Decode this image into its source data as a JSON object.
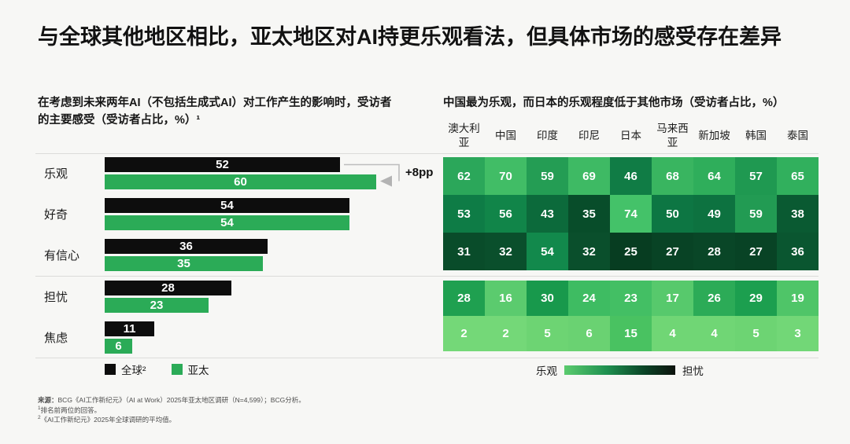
{
  "title": "与全球其他地区相比，亚太地区对AI持更乐观看法，但具体市场的感受存在差异",
  "chart_data": [
    {
      "type": "bar",
      "orientation": "horizontal",
      "title": "在考虑到未来两年AI（不包括生成式AI）对工作产生的影响时，受访者的主要感受（受访者占比，%）¹",
      "categories": [
        "乐观",
        "好奇",
        "有信心",
        "担忧",
        "焦虑"
      ],
      "series": [
        {
          "name": "全球²",
          "color": "#0d0d0d",
          "values": [
            52,
            54,
            36,
            28,
            11
          ]
        },
        {
          "name": "亚太",
          "color": "#2bab57",
          "values": [
            60,
            54,
            35,
            23,
            6
          ]
        }
      ],
      "annotations": [
        {
          "category": "乐观",
          "series": "亚太",
          "text": "+8pp"
        }
      ],
      "xlim": [
        0,
        62
      ],
      "value_labels": "inside-white",
      "grid": false
    },
    {
      "type": "heatmap",
      "title": "中国最为乐观，而日本的乐观程度低于其他市场（受访者占比，%）",
      "columns": [
        "澳大利亚",
        "中国",
        "印度",
        "印尼",
        "日本",
        "马来西亚",
        "新加坡",
        "韩国",
        "泰国"
      ],
      "rows": [
        "乐观",
        "好奇",
        "有信心",
        "担忧",
        "焦虑"
      ],
      "values": [
        [
          62,
          70,
          59,
          69,
          46,
          68,
          64,
          57,
          65
        ],
        [
          53,
          56,
          43,
          35,
          74,
          50,
          49,
          59,
          38
        ],
        [
          31,
          32,
          54,
          32,
          25,
          27,
          28,
          27,
          36
        ],
        [
          28,
          16,
          30,
          24,
          23,
          17,
          26,
          29,
          19
        ],
        [
          2,
          2,
          5,
          6,
          15,
          4,
          4,
          5,
          3
        ]
      ],
      "cell_colors": [
        [
          "#2ba75a",
          "#41bd66",
          "#249d54",
          "#3eba64",
          "#107c45",
          "#39b560",
          "#2fae5b",
          "#1f9951",
          "#31b05d"
        ],
        [
          "#0e7c46",
          "#118549",
          "#0c6a3b",
          "#084d2a",
          "#44c269",
          "#0d7643",
          "#0d7240",
          "#229b53",
          "#0a5a32"
        ],
        [
          "#094c2a",
          "#0a4f2c",
          "#12894c",
          "#0a4f2c",
          "#073d21",
          "#084325",
          "#094627",
          "#084325",
          "#0a5630"
        ],
        [
          "#1fa050",
          "#5bcb6e",
          "#18994c",
          "#3ebc62",
          "#43bf64",
          "#57c96c",
          "#2cab57",
          "#1c9f4f",
          "#4fc568"
        ],
        [
          "#74d878",
          "#74d878",
          "#6dd473",
          "#6ad272",
          "#49c261",
          "#70d675",
          "#70d675",
          "#6dd473",
          "#72d777"
        ]
      ],
      "legend": {
        "left": "乐观",
        "right": "担忧",
        "gradient_from": "#5bcb6e",
        "gradient_to": "#0d120d"
      }
    }
  ],
  "footer": {
    "source_label": "来源：",
    "source_text": "BCG《AI工作新纪元》（AI at Work）2025年亚太地区调研（N=4,599）；BCG分析。",
    "note1_sup": "1",
    "note1_text": "排名前两位的回答。",
    "note2_sup": "2",
    "note2_text": "《AI工作新纪元》2025年全球调研的平均值。"
  }
}
